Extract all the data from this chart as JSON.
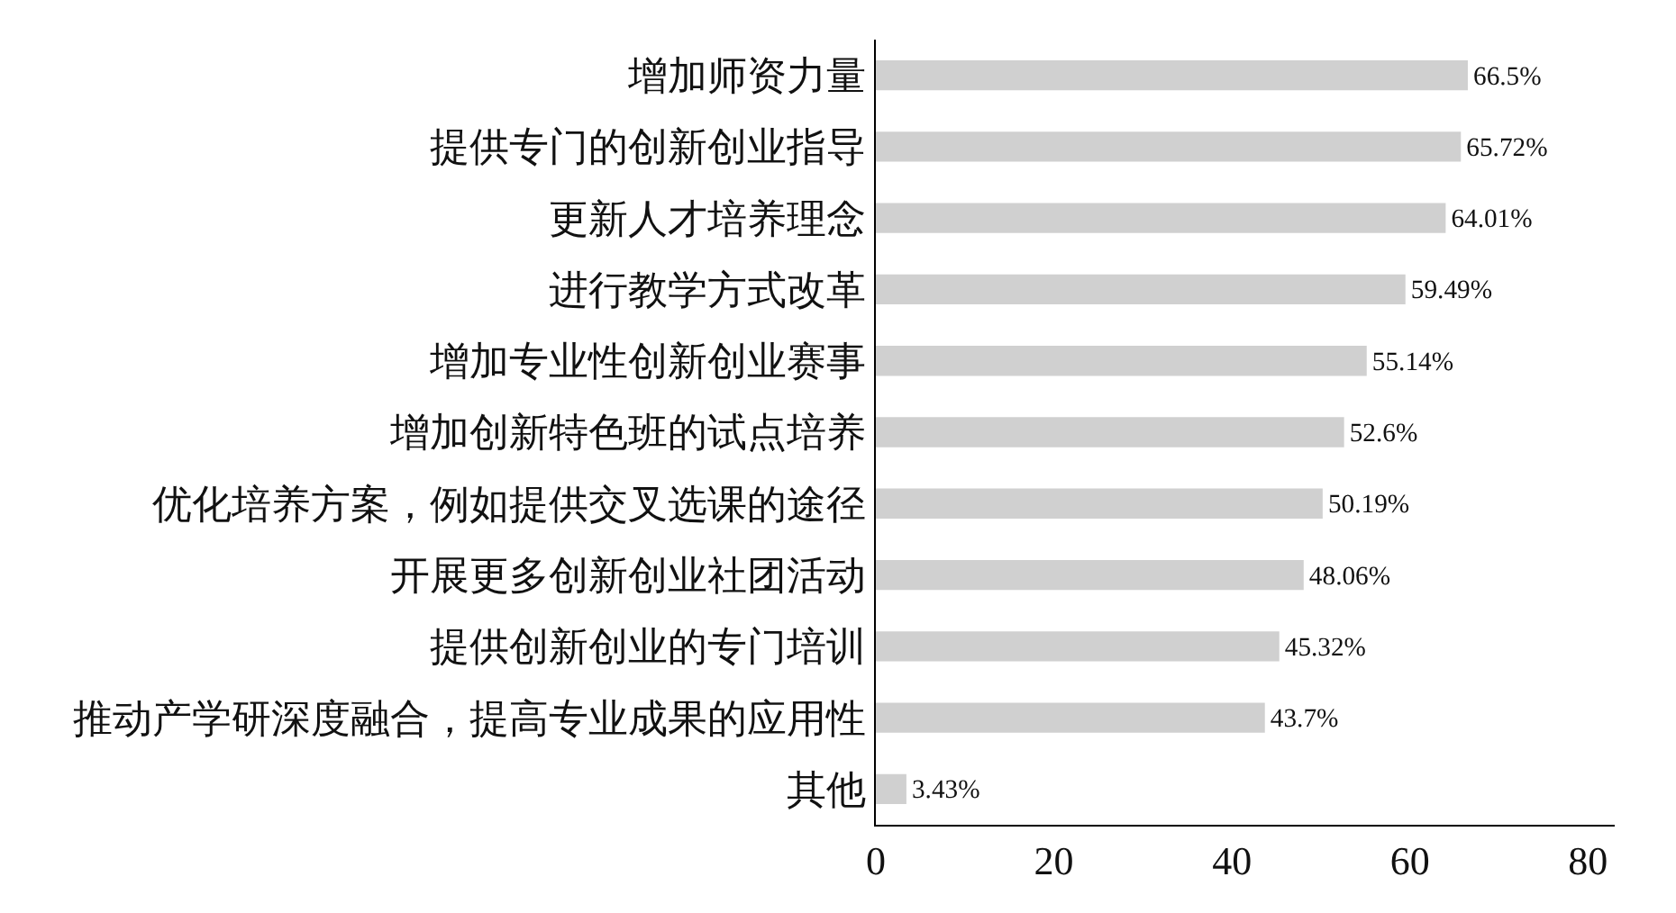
{
  "chart_data": {
    "type": "bar",
    "orientation": "horizontal",
    "categories": [
      "增加师资力量",
      "提供专门的创新创业指导",
      "更新人才培养理念",
      "进行教学方式改革",
      "增加专业性创新创业赛事",
      "增加创新特色班的试点培养",
      "优化培养方案，例如提供交叉选课的途径",
      "开展更多创新创业社团活动",
      "提供创新创业的专门培训",
      "推动产学研深度融合，提高专业成果的应用性",
      "其他"
    ],
    "values": [
      66.5,
      65.72,
      64.01,
      59.49,
      55.14,
      52.6,
      50.19,
      48.06,
      45.32,
      43.7,
      3.43
    ],
    "value_labels": [
      "66.5%",
      "65.72%",
      "64.01%",
      "59.49%",
      "55.14%",
      "52.6%",
      "50.19%",
      "48.06%",
      "45.32%",
      "43.7%",
      "3.43%"
    ],
    "color": "#d0d0d0",
    "xlim": [
      0,
      83
    ],
    "xticks": [
      0,
      20,
      40,
      60,
      80
    ]
  }
}
